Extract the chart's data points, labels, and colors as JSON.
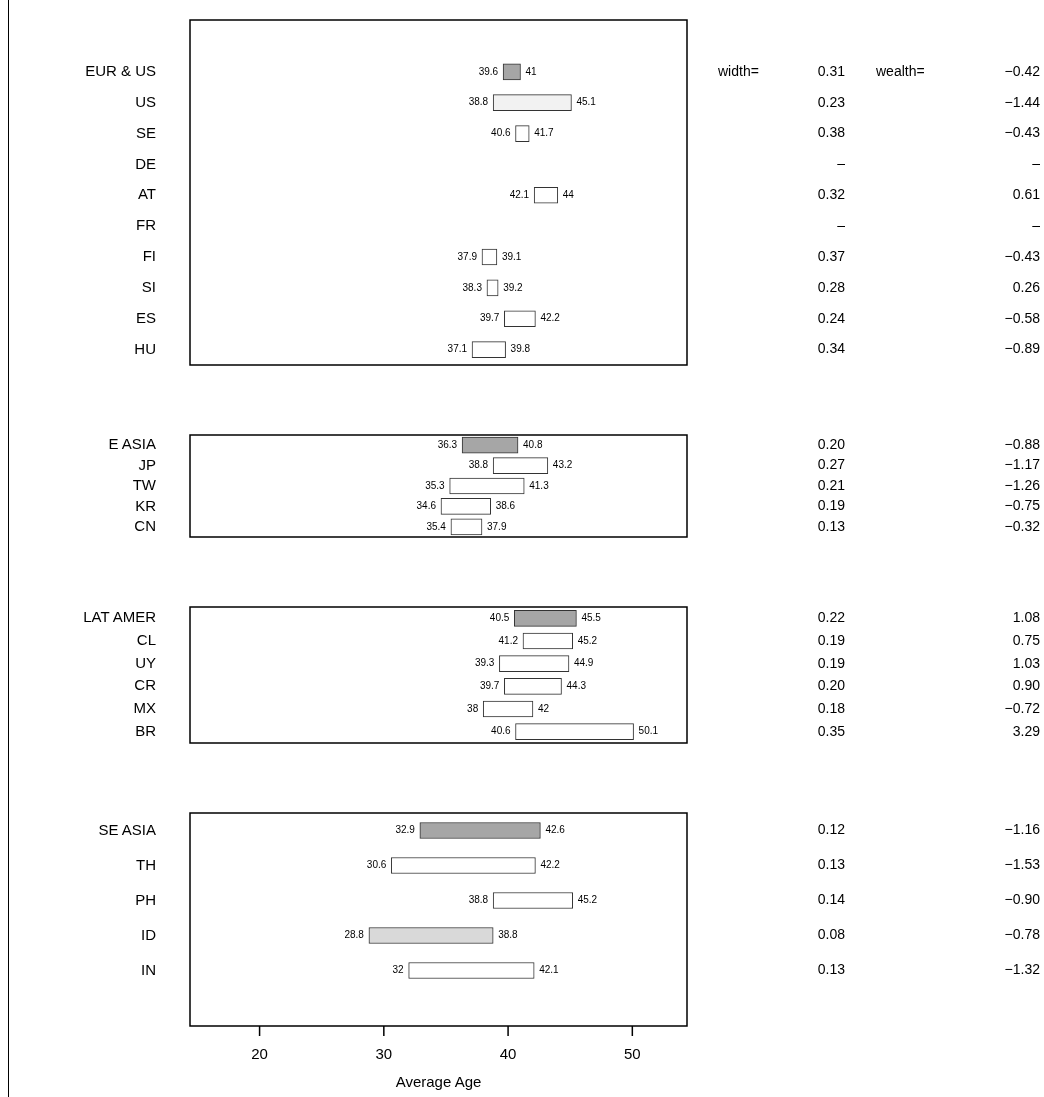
{
  "chart_data": [
    {
      "type": "bar",
      "orientation": "horizontal",
      "grid": false,
      "legend": false,
      "tick_labels": "y",
      "xlim": [
        14.4,
        54.4
      ],
      "xticks": [
        20,
        30,
        40,
        50
      ],
      "categories": [
        "EUR & US",
        "US",
        "SE",
        "DE",
        "AT",
        "FR",
        "FI",
        "SI",
        "ES",
        "HU"
      ],
      "base": [
        39.6,
        38.8,
        40.6,
        null,
        42.1,
        null,
        37.9,
        38.3,
        39.7,
        37.1
      ],
      "values": [
        1.4,
        6.3,
        1.1,
        null,
        1.9,
        null,
        1.2,
        0.9,
        2.5,
        2.7
      ],
      "colors": [
        "#a6a6a6",
        "#f2f2f2",
        "#ffffff",
        "#ffffff",
        "#ffffff",
        "#ffffff",
        "#ffffff",
        "#ffffff",
        "#ffffff",
        "#ffffff"
      ],
      "value_labels": [
        "41",
        "45.1",
        "41.7",
        null,
        "44",
        null,
        "39.1",
        "39.2",
        "42.2",
        "39.8"
      ],
      "annotations": [
        "width=",
        "wealth=",
        {
          "text": "39.6",
          "x": 39.6,
          "y": "EUR & US"
        },
        "0.31",
        "−0.42",
        {
          "text": "38.8",
          "x": 38.8,
          "y": "US"
        },
        "0.23",
        "−1.44",
        {
          "text": "40.6",
          "x": 40.6,
          "y": "SE"
        },
        "0.38",
        "−0.43",
        "–",
        "–",
        {
          "text": "42.1",
          "x": 42.1,
          "y": "AT"
        },
        "0.32",
        "0.61",
        "–",
        "–",
        {
          "text": "37.9",
          "x": 37.9,
          "y": "FI"
        },
        "0.37",
        "−0.43",
        {
          "text": "38.3",
          "x": 38.3,
          "y": "SI"
        },
        "0.28",
        "0.26",
        {
          "text": "39.7",
          "x": 39.7,
          "y": "ES"
        },
        "0.24",
        "−0.58",
        {
          "text": "37.1",
          "x": 37.1,
          "y": "HU"
        },
        "0.34",
        "−0.89"
      ]
    },
    {
      "type": "bar",
      "orientation": "horizontal",
      "grid": false,
      "legend": false,
      "tick_labels": "y",
      "xlim": [
        14.4,
        54.4
      ],
      "xticks": [
        20,
        30,
        40,
        50
      ],
      "categories": [
        "E ASIA",
        "JP",
        "TW",
        "KR",
        "CN"
      ],
      "base": [
        36.3,
        38.8,
        35.3,
        34.6,
        35.4
      ],
      "values": [
        4.5,
        4.4,
        6.0,
        4.0,
        2.5
      ],
      "colors": [
        "#a6a6a6",
        "#ffffff",
        "#ffffff",
        "#ffffff",
        "#ffffff"
      ],
      "value_labels": [
        "40.8",
        "43.2",
        "41.3",
        "38.6",
        "37.9"
      ],
      "annotations": [
        {
          "text": "36.3",
          "x": 36.3,
          "y": "E ASIA"
        },
        "0.20",
        "−0.88",
        {
          "text": "38.8",
          "x": 38.8,
          "y": "JP"
        },
        "0.27",
        "−1.17",
        {
          "text": "35.3",
          "x": 35.3,
          "y": "TW"
        },
        "0.21",
        "−1.26",
        {
          "text": "34.6",
          "x": 34.6,
          "y": "KR"
        },
        "0.19",
        "−0.75",
        {
          "text": "35.4",
          "x": 35.4,
          "y": "CN"
        },
        "0.13",
        "−0.32"
      ]
    },
    {
      "type": "bar",
      "orientation": "horizontal",
      "grid": false,
      "legend": false,
      "tick_labels": "y",
      "xlim": [
        14.4,
        54.4
      ],
      "xticks": [
        20,
        30,
        40,
        50
      ],
      "categories": [
        "LAT AMER",
        "CL",
        "UY",
        "CR",
        "MX",
        "BR"
      ],
      "base": [
        40.5,
        41.2,
        39.3,
        39.7,
        38,
        40.6
      ],
      "values": [
        5.0,
        4.0,
        5.6,
        4.6,
        4.0,
        9.5
      ],
      "colors": [
        "#a6a6a6",
        "#ffffff",
        "#ffffff",
        "#ffffff",
        "#ffffff",
        "#ffffff"
      ],
      "value_labels": [
        "45.5",
        "45.2",
        "44.9",
        "44.3",
        "42",
        "50.1"
      ],
      "annotations": [
        {
          "text": "40.5",
          "x": 40.5,
          "y": "LAT AMER"
        },
        "0.22",
        "1.08",
        {
          "text": "41.2",
          "x": 41.2,
          "y": "CL"
        },
        "0.19",
        "0.75",
        {
          "text": "39.3",
          "x": 39.3,
          "y": "UY"
        },
        "0.19",
        "1.03",
        {
          "text": "39.7",
          "x": 39.7,
          "y": "CR"
        },
        "0.20",
        "0.90",
        {
          "text": "38",
          "x": 38,
          "y": "MX"
        },
        "0.18",
        "−0.72",
        {
          "text": "40.6",
          "x": 40.6,
          "y": "BR"
        },
        "0.35",
        "3.29"
      ]
    },
    {
      "type": "bar",
      "orientation": "horizontal",
      "grid": false,
      "legend": false,
      "xlim": [
        14.4,
        54.4
      ],
      "xticks": [
        20,
        30,
        40,
        50
      ],
      "xlabel": "Average Age",
      "categories": [
        "SE ASIA",
        "TH",
        "PH",
        "ID",
        "IN"
      ],
      "base": [
        32.9,
        30.6,
        38.8,
        28.8,
        32
      ],
      "values": [
        9.7,
        11.6,
        6.4,
        10.0,
        10.1
      ],
      "colors": [
        "#a6a6a6",
        "#ffffff",
        "#ffffff",
        "#d9d9d9",
        "#ffffff"
      ],
      "value_labels": [
        "42.6",
        "42.2",
        "45.2",
        "38.8",
        "42.1"
      ],
      "annotations": [
        {
          "text": "32.9",
          "x": 32.9,
          "y": "SE ASIA"
        },
        "0.12",
        "−1.16",
        {
          "text": "30.6",
          "x": 30.6,
          "y": "TH"
        },
        "0.13",
        "−1.53",
        {
          "text": "38.8",
          "x": 38.8,
          "y": "PH"
        },
        "0.14",
        "−0.90",
        {
          "text": "28.8",
          "x": 28.8,
          "y": "ID"
        },
        "0.08",
        "−0.78",
        {
          "text": "32",
          "x": 32,
          "y": "IN"
        },
        "0.13",
        "−1.32"
      ]
    }
  ]
}
